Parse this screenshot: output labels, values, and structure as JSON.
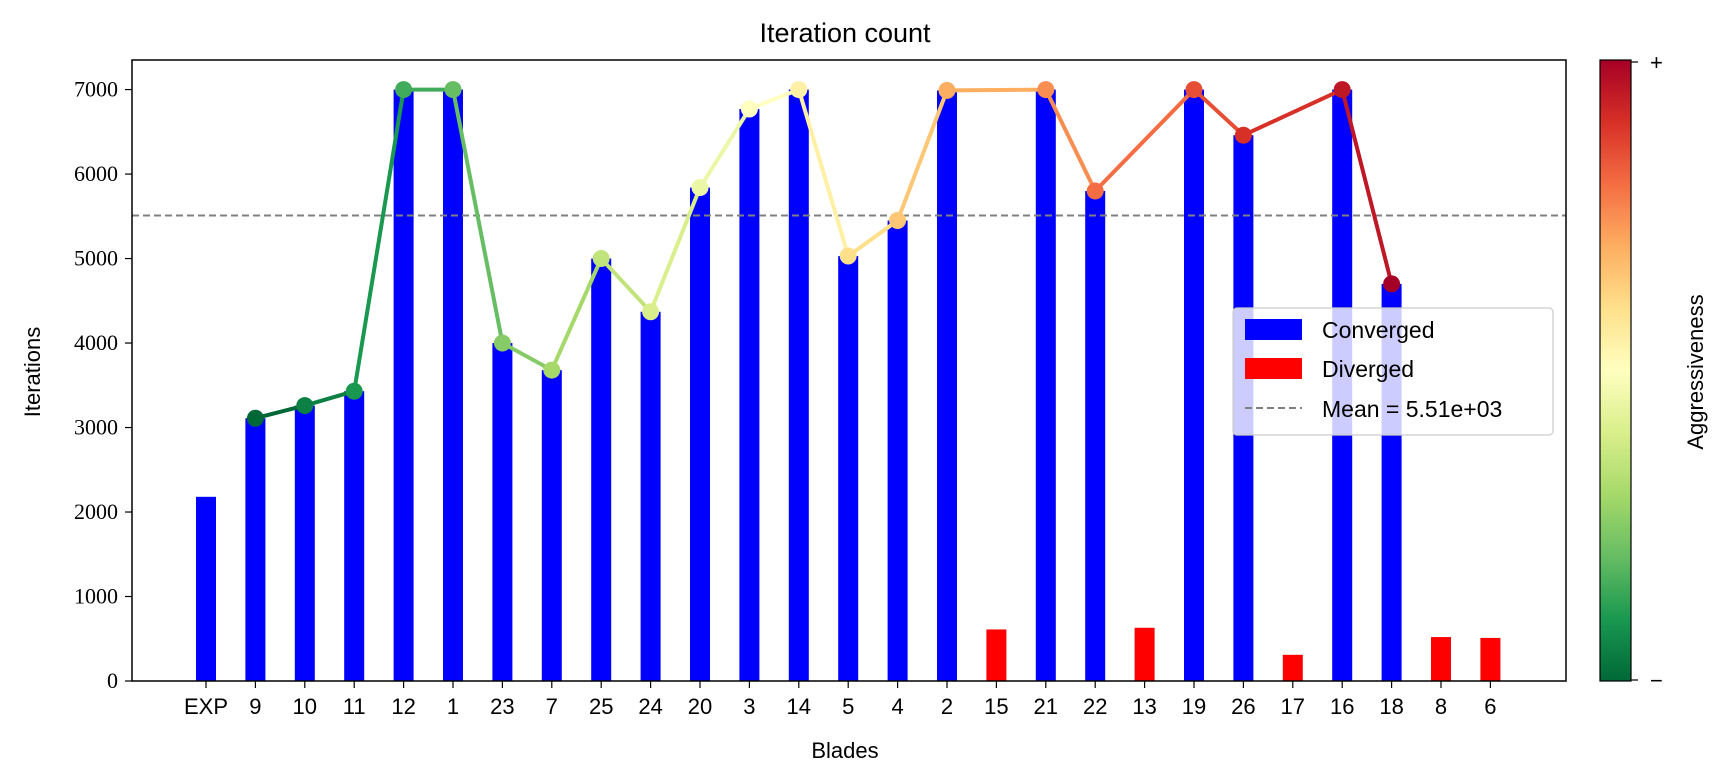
{
  "chart_data": {
    "type": "bar",
    "title": "Iteration count",
    "xlabel": "Blades",
    "ylabel": "Iterations",
    "ylim": [
      0,
      7350
    ],
    "yticks": [
      0,
      1000,
      2000,
      3000,
      4000,
      5000,
      6000,
      7000
    ],
    "categories": [
      "EXP",
      "9",
      "10",
      "11",
      "12",
      "1",
      "23",
      "7",
      "25",
      "24",
      "20",
      "3",
      "14",
      "5",
      "4",
      "2",
      "15",
      "21",
      "22",
      "13",
      "19",
      "26",
      "17",
      "16",
      "18",
      "8",
      "6"
    ],
    "series": [
      {
        "name": "Converged",
        "color": "#0000ff",
        "values": [
          2180,
          3110,
          3260,
          3430,
          7000,
          7000,
          4000,
          3680,
          5000,
          4370,
          5840,
          6770,
          7000,
          5030,
          5450,
          6990,
          null,
          7000,
          5800,
          null,
          7000,
          6460,
          null,
          7000,
          4700,
          null,
          null
        ]
      },
      {
        "name": "Diverged",
        "color": "#ff0000",
        "values": [
          null,
          null,
          null,
          null,
          null,
          null,
          null,
          null,
          null,
          null,
          null,
          null,
          null,
          null,
          null,
          null,
          610,
          null,
          null,
          630,
          null,
          null,
          310,
          null,
          null,
          520,
          510
        ]
      },
      {
        "type": "line",
        "marker": "circle",
        "colormap": "RdYlGn_r",
        "values": [
          null,
          3110,
          3260,
          3430,
          7000,
          7000,
          4000,
          3680,
          5000,
          4370,
          5840,
          6770,
          7000,
          5030,
          5450,
          6990,
          null,
          7000,
          5800,
          null,
          7000,
          6460,
          null,
          7000,
          4700,
          null,
          null
        ]
      }
    ],
    "mean_line": {
      "value": 5510,
      "label": "Mean = 5.51e+03",
      "style": "dashed",
      "color": "#808080"
    },
    "legend": {
      "position": "right",
      "entries": [
        "Converged",
        "Diverged",
        "Mean = 5.51e+03"
      ]
    },
    "colorbar": {
      "label": "Aggressiveness",
      "top_label": "+",
      "bottom_label": "−",
      "colormap": "RdYlGn_r"
    },
    "grid": false
  }
}
